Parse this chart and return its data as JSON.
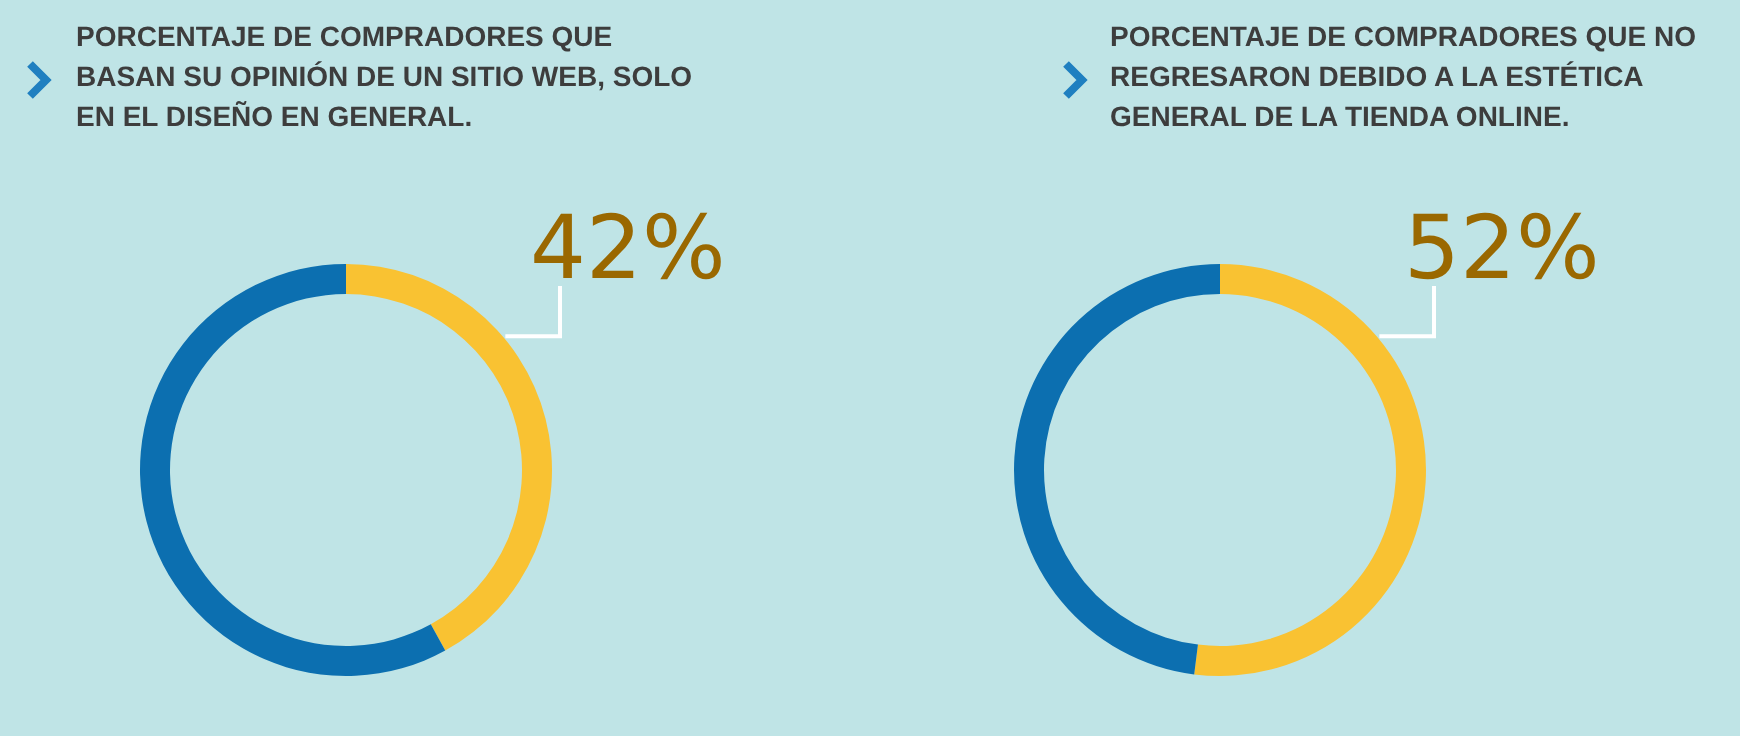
{
  "chart_data": [
    {
      "type": "donut",
      "title": "PORCENTAJE DE COMPRADORES QUE BASAN SU OPINIÓN DE UN SITIO WEB, SOLO EN EL DISEÑO EN GENERAL.",
      "categories": [
        null,
        null
      ],
      "values": [
        42,
        58
      ],
      "colors": [
        "#f9c232",
        "#0c6fb0"
      ],
      "value_labels": [
        "42%",
        null
      ],
      "legend": false
    },
    {
      "type": "donut",
      "title": "PORCENTAJE DE COMPRADORES QUE NO REGRESARON DEBIDO A LA ESTÉTICA GENERAL DE LA TIENDA ONLINE.",
      "categories": [
        null,
        null
      ],
      "values": [
        52,
        48
      ],
      "colors": [
        "#f9c232",
        "#0c6fb0"
      ],
      "value_labels": [
        "52%",
        null
      ],
      "legend": false
    }
  ]
}
